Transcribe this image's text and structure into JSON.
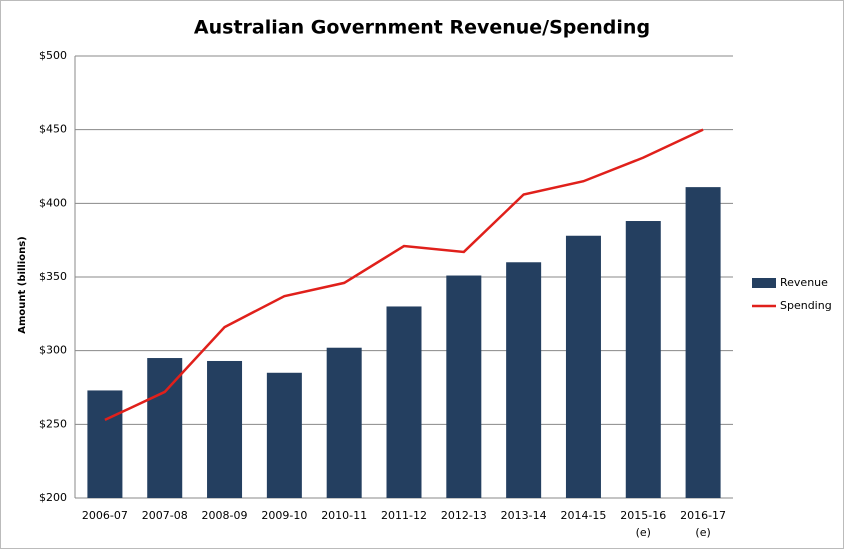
{
  "chart_data": {
    "type": "bar",
    "title": "Australian Government Revenue/Spending",
    "y_label": "Amount (billions)",
    "categories": [
      "2006-07",
      "2007-08",
      "2008-09",
      "2009-10",
      "2010-11",
      "2011-12",
      "2012-13",
      "2013-14",
      "2014-15",
      "2015-16 (e)",
      "2016-17 (e)"
    ],
    "series": [
      {
        "name": "Revenue",
        "type": "bar",
        "color": "#243f60",
        "values": [
          273,
          295,
          293,
          285,
          302,
          330,
          351,
          360,
          378,
          388,
          411
        ]
      },
      {
        "name": "Spending",
        "type": "line",
        "color": "#e0201b",
        "values": [
          253,
          272,
          316,
          337,
          346,
          371,
          367,
          406,
          415,
          431,
          450
        ]
      }
    ],
    "ylim": [
      200,
      500
    ],
    "yticks": [
      {
        "value": 200,
        "label": "$200"
      },
      {
        "value": 250,
        "label": "$250"
      },
      {
        "value": 300,
        "label": "$300"
      },
      {
        "value": 350,
        "label": "$350"
      },
      {
        "value": 400,
        "label": "$400"
      },
      {
        "value": 450,
        "label": "$450"
      },
      {
        "value": 500,
        "label": "$500"
      }
    ],
    "grid": true,
    "legend": "right"
  }
}
